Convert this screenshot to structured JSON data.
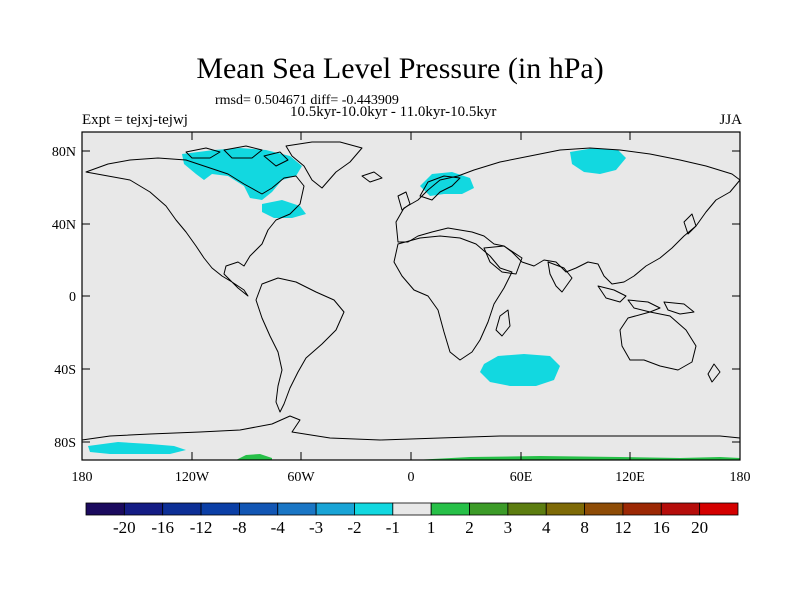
{
  "title": "Mean Sea Level Pressure (in hPa)",
  "stats": "rmsd= 0.504671 diff= -0.443909",
  "period": "10.5kyr-10.0kyr - 11.0kyr-10.5kyr",
  "experiment": "Expt = tejxj-tejwj",
  "season": "JJA",
  "lat_ticks": [
    "80N",
    "40N",
    "0",
    "40S",
    "80S"
  ],
  "lon_ticks": [
    "180",
    "120W",
    "60W",
    "0",
    "60E",
    "120E",
    "180"
  ],
  "colorbar": {
    "labels": [
      "-20",
      "-16",
      "-12",
      "-8",
      "-4",
      "-3",
      "-2",
      "-1",
      "1",
      "2",
      "3",
      "4",
      "8",
      "12",
      "16",
      "20"
    ],
    "colors": [
      "#1b0a5e",
      "#141c84",
      "#0d2f96",
      "#0b3fa6",
      "#1256b4",
      "#1a76c5",
      "#19a4d6",
      "#12d8e0",
      "#e8e8e8",
      "#27c048",
      "#3c9b28",
      "#5c7d10",
      "#7e6a07",
      "#8e4c06",
      "#9c2804",
      "#b50d0a",
      "#d40000"
    ]
  },
  "legend_colors": {
    "ocean": "#e8e8e8",
    "negative": "#12d8e0",
    "positive": "#27c048"
  }
}
